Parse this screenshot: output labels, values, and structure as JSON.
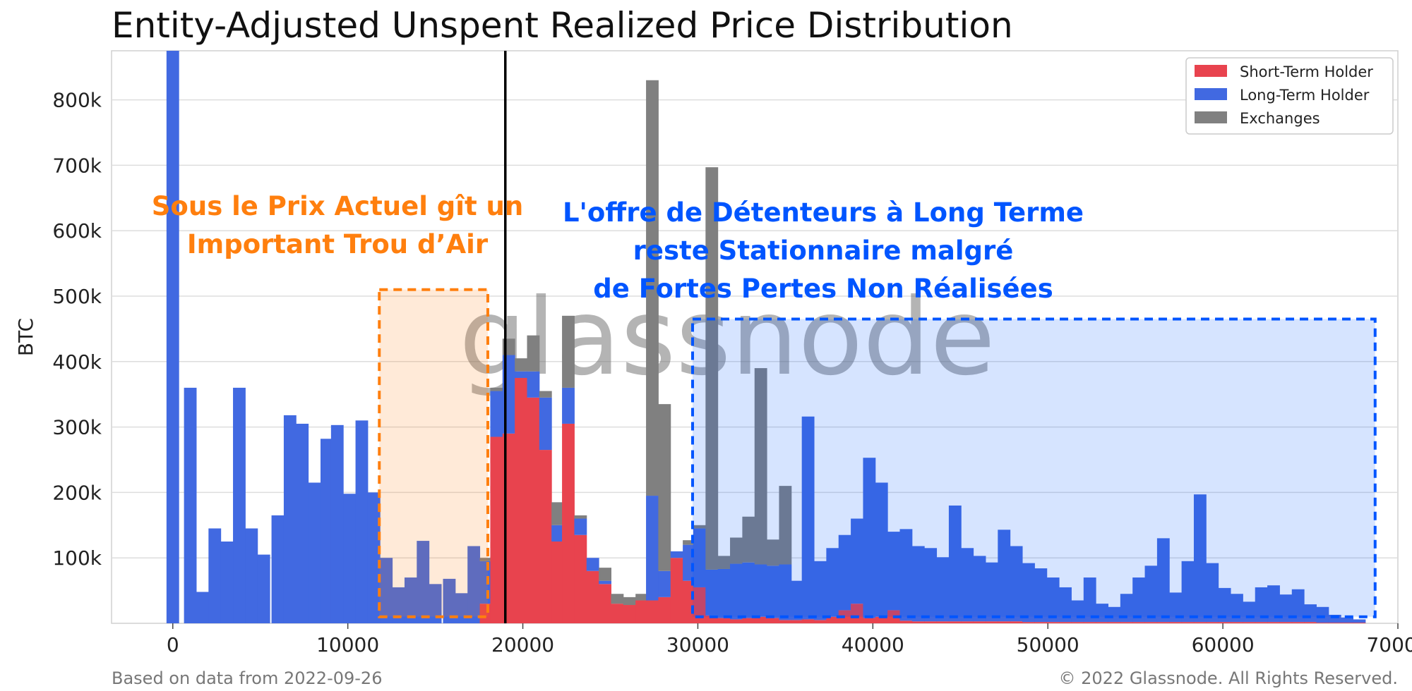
{
  "chart_data": {
    "type": "bar",
    "title": "Entity-Adjusted Unspent Realized Price Distribution",
    "xlabel": "",
    "ylabel": "BTC",
    "xlim": [
      -3500,
      70000
    ],
    "ylim": [
      0,
      875000
    ],
    "x_ticks": [
      0,
      10000,
      20000,
      30000,
      40000,
      50000,
      60000,
      70000
    ],
    "x_tick_labels": [
      "0",
      "10000",
      "20000",
      "30000",
      "40000",
      "50000",
      "60000",
      "70000"
    ],
    "y_ticks": [
      100000,
      200000,
      300000,
      400000,
      500000,
      600000,
      700000,
      800000
    ],
    "y_tick_labels": [
      "100k",
      "200k",
      "300k",
      "400k",
      "500k",
      "600k",
      "700k",
      "800k"
    ],
    "bin_width": 720,
    "grid": true,
    "legend_placement": "top-right",
    "x": [
      0,
      1000,
      1700,
      2400,
      3100,
      3800,
      4500,
      5200,
      6000,
      6700,
      7400,
      8100,
      8800,
      9400,
      10100,
      10800,
      11500,
      12200,
      12900,
      13600,
      14300,
      15000,
      15800,
      16500,
      17200,
      17900,
      18500,
      19200,
      19900,
      20600,
      21300,
      22000,
      22600,
      23300,
      24000,
      24700,
      25400,
      26100,
      26800,
      27400,
      28100,
      28800,
      29500,
      30100,
      30800,
      31500,
      32200,
      32900,
      33600,
      34300,
      35000,
      35700,
      36300,
      37000,
      37700,
      38400,
      39100,
      39800,
      40500,
      41200,
      41900,
      42600,
      43300,
      44000,
      44700,
      45400,
      46100,
      46800,
      47500,
      48200,
      48900,
      49600,
      50300,
      51000,
      51700,
      52400,
      53100,
      53800,
      54500,
      55200,
      55900,
      56600,
      57300,
      58000,
      58700,
      59400,
      60100,
      60800,
      61500,
      62200,
      62900,
      63600,
      64300,
      65000,
      65700,
      66400,
      67100,
      67800
    ],
    "series": [
      {
        "name": "Short-Term Holder",
        "color": "#e8434e",
        "values": [
          0,
          0,
          0,
          0,
          0,
          0,
          0,
          0,
          0,
          0,
          0,
          0,
          0,
          0,
          0,
          0,
          0,
          0,
          0,
          0,
          0,
          0,
          0,
          0,
          0,
          30000,
          285000,
          290000,
          375000,
          345000,
          265000,
          125000,
          305000,
          135000,
          80000,
          60000,
          30000,
          28000,
          35000,
          35000,
          40000,
          100000,
          65000,
          55000,
          12000,
          8000,
          6000,
          8000,
          10000,
          8000,
          5000,
          5000,
          6000,
          5000,
          10000,
          20000,
          30000,
          8000,
          10000,
          20000,
          4000,
          3000,
          3000,
          3000,
          3000,
          3000,
          3000,
          3000,
          3000,
          3000,
          2000,
          2000,
          2000,
          2000,
          2000,
          2000,
          2000,
          2000,
          2000,
          2000,
          2000,
          2000,
          2000,
          2000,
          2000,
          2000,
          2000,
          2000,
          2000,
          2000,
          2000,
          2000,
          2000,
          2000,
          1000,
          1000,
          1000,
          1000
        ]
      },
      {
        "name": "Long-Term Holder",
        "color": "#4169e1",
        "values": [
          875000,
          360000,
          48000,
          145000,
          125000,
          360000,
          145000,
          105000,
          165000,
          318000,
          305000,
          215000,
          282000,
          303000,
          198000,
          310000,
          200000,
          100000,
          55000,
          70000,
          126000,
          60000,
          68000,
          46000,
          118000,
          65000,
          70000,
          120000,
          10000,
          40000,
          80000,
          25000,
          55000,
          25000,
          20000,
          5000,
          0,
          0,
          0,
          160000,
          40000,
          10000,
          55000,
          90000,
          70000,
          75000,
          85000,
          85000,
          80000,
          80000,
          85000,
          60000,
          310000,
          90000,
          105000,
          115000,
          130000,
          245000,
          205000,
          120000,
          140000,
          115000,
          112000,
          98000,
          177000,
          112000,
          100000,
          90000,
          140000,
          115000,
          90000,
          82000,
          68000,
          53000,
          33000,
          68000,
          28000,
          23000,
          43000,
          68000,
          86000,
          128000,
          45000,
          93000,
          195000,
          90000,
          52000,
          43000,
          31000,
          53000,
          56000,
          42000,
          50000,
          27000,
          24000,
          12000,
          8000,
          5000
        ]
      },
      {
        "name": "Exchanges",
        "color": "#808080",
        "values": [
          0,
          0,
          0,
          0,
          0,
          0,
          0,
          0,
          0,
          0,
          0,
          0,
          0,
          0,
          0,
          0,
          0,
          0,
          0,
          0,
          0,
          0,
          0,
          0,
          0,
          5000,
          5000,
          25000,
          20000,
          55000,
          10000,
          35000,
          110000,
          5000,
          0,
          20000,
          15000,
          12000,
          10000,
          635000,
          255000,
          0,
          7000,
          5000,
          615000,
          20000,
          40000,
          70000,
          300000,
          40000,
          120000,
          0,
          0,
          0,
          0,
          0,
          0,
          0,
          0,
          0,
          0,
          0,
          0,
          0,
          0,
          0,
          0,
          0,
          0,
          0,
          0,
          0,
          0,
          0,
          0,
          0,
          0,
          0,
          0,
          0,
          0,
          0,
          0,
          0,
          0,
          0,
          0,
          0,
          0,
          0,
          0,
          0,
          0,
          0,
          0,
          0,
          0,
          0
        ]
      }
    ],
    "current_price_line": 19000,
    "annotations": [
      {
        "id": "air-gap",
        "text_lines": [
          "Sous le Prix Actuel gît un",
          "Important Trou d’Air"
        ],
        "color": "#ff7f0e",
        "x_range": [
          11800,
          18000
        ],
        "y_range": [
          10000,
          510000
        ]
      },
      {
        "id": "lth-supply",
        "text_lines": [
          "L'offre de Détenteurs à Long Terme",
          "reste Stationnaire malgré",
          "de Fortes Pertes Non Réalisées"
        ],
        "color": "#0055ff",
        "x_range": [
          29700,
          68700
        ],
        "y_range": [
          10000,
          465000
        ]
      }
    ],
    "watermark": "glassnode",
    "footer_left": "Based on data from 2022-09-26",
    "footer_right": "© 2022 Glassnode. All Rights Reserved."
  }
}
